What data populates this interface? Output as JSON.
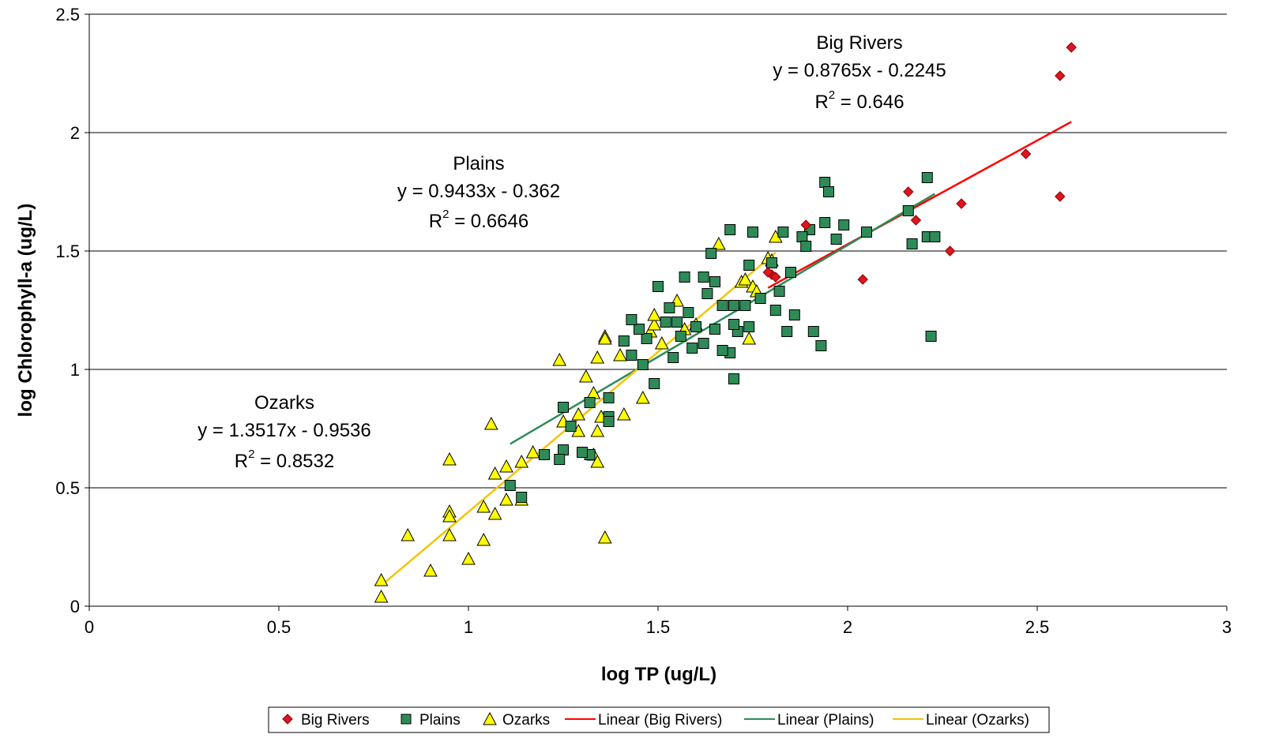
{
  "chart_data": {
    "type": "scatter",
    "title": "",
    "xlabel": "log TP (ug/L)",
    "ylabel": "log Chlorophyll-a (ug/L)",
    "xlim": [
      0,
      3
    ],
    "ylim": [
      0,
      2.5
    ],
    "x_ticks": [
      "0",
      "0.5",
      "1",
      "1.5",
      "2",
      "2.5",
      "3"
    ],
    "y_ticks": [
      "0",
      "0.5",
      "1",
      "1.5",
      "2",
      "2.5"
    ],
    "grid": "horizontal",
    "legend_position": "bottom",
    "series": [
      {
        "name": "Big Rivers",
        "marker": "diamond",
        "color": "#e0141e",
        "points": [
          [
            2.59,
            2.36
          ],
          [
            2.56,
            2.24
          ],
          [
            2.47,
            1.91
          ],
          [
            2.56,
            1.73
          ],
          [
            2.3,
            1.7
          ],
          [
            2.27,
            1.5
          ],
          [
            2.16,
            1.75
          ],
          [
            2.18,
            1.63
          ],
          [
            2.04,
            1.38
          ],
          [
            1.89,
            1.61
          ],
          [
            1.8,
            1.4
          ],
          [
            1.81,
            1.39
          ],
          [
            1.79,
            1.41
          ]
        ]
      },
      {
        "name": "Plains",
        "marker": "square",
        "color": "#2e8b57",
        "points": [
          [
            1.94,
            1.79
          ],
          [
            1.95,
            1.75
          ],
          [
            2.21,
            1.81
          ],
          [
            2.16,
            1.67
          ],
          [
            2.17,
            1.53
          ],
          [
            2.21,
            1.56
          ],
          [
            2.23,
            1.56
          ],
          [
            2.22,
            1.14
          ],
          [
            2.05,
            1.58
          ],
          [
            1.99,
            1.61
          ],
          [
            1.97,
            1.55
          ],
          [
            1.94,
            1.62
          ],
          [
            1.93,
            1.1
          ],
          [
            1.91,
            1.16
          ],
          [
            1.9,
            1.59
          ],
          [
            1.88,
            1.56
          ],
          [
            1.89,
            1.52
          ],
          [
            1.86,
            1.23
          ],
          [
            1.85,
            1.41
          ],
          [
            1.84,
            1.16
          ],
          [
            1.83,
            1.58
          ],
          [
            1.82,
            1.33
          ],
          [
            1.81,
            1.25
          ],
          [
            1.8,
            1.45
          ],
          [
            1.77,
            1.3
          ],
          [
            1.75,
            1.58
          ],
          [
            1.74,
            1.44
          ],
          [
            1.74,
            1.18
          ],
          [
            1.73,
            1.27
          ],
          [
            1.71,
            1.16
          ],
          [
            1.7,
            1.19
          ],
          [
            1.7,
            1.27
          ],
          [
            1.69,
            1.07
          ],
          [
            1.7,
            0.96
          ],
          [
            1.69,
            1.59
          ],
          [
            1.67,
            1.27
          ],
          [
            1.67,
            1.08
          ],
          [
            1.65,
            1.17
          ],
          [
            1.64,
            1.49
          ],
          [
            1.65,
            1.37
          ],
          [
            1.63,
            1.32
          ],
          [
            1.62,
            1.39
          ],
          [
            1.62,
            1.11
          ],
          [
            1.6,
            1.18
          ],
          [
            1.59,
            1.09
          ],
          [
            1.58,
            1.24
          ],
          [
            1.57,
            1.39
          ],
          [
            1.56,
            1.14
          ],
          [
            1.55,
            1.2
          ],
          [
            1.54,
            1.05
          ],
          [
            1.53,
            1.26
          ],
          [
            1.52,
            1.2
          ],
          [
            1.5,
            1.35
          ],
          [
            1.49,
            0.94
          ],
          [
            1.47,
            1.13
          ],
          [
            1.46,
            1.02
          ],
          [
            1.45,
            1.17
          ],
          [
            1.43,
            1.21
          ],
          [
            1.43,
            1.06
          ],
          [
            1.41,
            1.12
          ],
          [
            1.37,
            0.88
          ],
          [
            1.37,
            0.8
          ],
          [
            1.37,
            0.78
          ],
          [
            1.32,
            0.86
          ],
          [
            1.32,
            0.64
          ],
          [
            1.3,
            0.65
          ],
          [
            1.27,
            0.76
          ],
          [
            1.25,
            0.84
          ],
          [
            1.25,
            0.66
          ],
          [
            1.24,
            0.62
          ],
          [
            1.2,
            0.64
          ],
          [
            1.14,
            0.46
          ],
          [
            1.11,
            0.51
          ]
        ]
      },
      {
        "name": "Ozarks",
        "marker": "triangle",
        "color": "#ffff00",
        "points": [
          [
            0.77,
            0.11
          ],
          [
            0.77,
            0.04
          ],
          [
            0.84,
            0.3
          ],
          [
            0.9,
            0.15
          ],
          [
            0.95,
            0.62
          ],
          [
            0.95,
            0.4
          ],
          [
            0.95,
            0.38
          ],
          [
            0.95,
            0.3
          ],
          [
            1.0,
            0.2
          ],
          [
            1.04,
            0.42
          ],
          [
            1.04,
            0.28
          ],
          [
            1.06,
            0.77
          ],
          [
            1.07,
            0.56
          ],
          [
            1.07,
            0.39
          ],
          [
            1.1,
            0.59
          ],
          [
            1.1,
            0.45
          ],
          [
            1.14,
            0.61
          ],
          [
            1.14,
            0.45
          ],
          [
            1.17,
            0.65
          ],
          [
            1.24,
            1.04
          ],
          [
            1.25,
            0.78
          ],
          [
            1.29,
            0.81
          ],
          [
            1.29,
            0.74
          ],
          [
            1.31,
            0.97
          ],
          [
            1.33,
            0.9
          ],
          [
            1.33,
            0.64
          ],
          [
            1.34,
            1.05
          ],
          [
            1.34,
            0.74
          ],
          [
            1.34,
            0.61
          ],
          [
            1.35,
            0.8
          ],
          [
            1.36,
            1.14
          ],
          [
            1.36,
            1.13
          ],
          [
            1.36,
            0.29
          ],
          [
            1.4,
            1.06
          ],
          [
            1.41,
            0.81
          ],
          [
            1.46,
            0.88
          ],
          [
            1.48,
            1.16
          ],
          [
            1.49,
            1.19
          ],
          [
            1.49,
            1.23
          ],
          [
            1.51,
            1.11
          ],
          [
            1.55,
            1.29
          ],
          [
            1.57,
            1.17
          ],
          [
            1.6,
            1.19
          ],
          [
            1.66,
            1.53
          ],
          [
            1.72,
            1.37
          ],
          [
            1.73,
            1.38
          ],
          [
            1.74,
            1.13
          ],
          [
            1.75,
            1.35
          ],
          [
            1.76,
            1.33
          ],
          [
            1.79,
            1.47
          ],
          [
            1.8,
            1.46
          ],
          [
            1.81,
            1.56
          ]
        ]
      }
    ],
    "trendlines": [
      {
        "name": "Linear (Big Rivers)",
        "series": "Big Rivers",
        "slope": 0.8765,
        "intercept": -0.2245,
        "x_range": [
          1.79,
          2.59
        ],
        "color": "#ff0000"
      },
      {
        "name": "Linear (Plains)",
        "series": "Plains",
        "slope": 0.9433,
        "intercept": -0.362,
        "x_range": [
          1.11,
          2.23
        ],
        "color": "#2e8b57"
      },
      {
        "name": "Linear (Ozarks)",
        "series": "Ozarks",
        "slope": 1.3517,
        "intercept": -0.9536,
        "x_range": [
          0.77,
          1.81
        ],
        "color": "#f5c400"
      }
    ],
    "annotations": [
      {
        "id": "big-rivers",
        "title": "Big Rivers",
        "equation": "y = 0.8765x - 0.2245",
        "r2_label": "R",
        "r2_exp": "2",
        "r2_value": " = 0.646"
      },
      {
        "id": "plains",
        "title": "Plains",
        "equation": "y = 0.9433x - 0.362",
        "r2_label": "R",
        "r2_exp": "2",
        "r2_value": " = 0.6646"
      },
      {
        "id": "ozarks",
        "title": "Ozarks",
        "equation": "y = 1.3517x - 0.9536",
        "r2_label": "R",
        "r2_exp": "2",
        "r2_value": " = 0.8532"
      }
    ],
    "legend": [
      "Big Rivers",
      "Plains",
      "Ozarks",
      "Linear (Big Rivers)",
      "Linear (Plains)",
      "Linear (Ozarks)"
    ]
  }
}
